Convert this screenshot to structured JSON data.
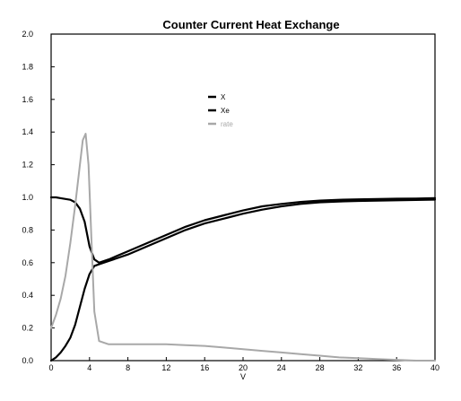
{
  "chart_data": {
    "type": "line",
    "title": "Counter Current Heat Exchange",
    "xlabel": "V",
    "ylabel": "",
    "xlim": [
      0,
      40
    ],
    "ylim": [
      0,
      2.0
    ],
    "xticks": [
      0,
      4,
      8,
      12,
      16,
      20,
      24,
      28,
      32,
      36,
      40
    ],
    "yticks": [
      0.0,
      0.2,
      0.4,
      0.6,
      0.8,
      1.0,
      1.2,
      1.4,
      1.6,
      1.8,
      2.0
    ],
    "ytick_labels": [
      "0.0",
      "0.2",
      "0.4",
      "0.6",
      "0.8",
      "1.0",
      "1.2",
      "1.4",
      "1.6",
      "1.8",
      "2.0"
    ],
    "grid": false,
    "legend_position": "upper-center",
    "series": [
      {
        "name": "X",
        "color": "#000000",
        "x": [
          0,
          0.5,
          1,
          1.5,
          2,
          2.5,
          3,
          3.5,
          4,
          4.5,
          5,
          6,
          8,
          10,
          12,
          14,
          16,
          18,
          20,
          22,
          24,
          26,
          28,
          30,
          32,
          34,
          36,
          38,
          40
        ],
        "y": [
          0.0,
          0.02,
          0.05,
          0.09,
          0.14,
          0.22,
          0.33,
          0.44,
          0.53,
          0.58,
          0.59,
          0.61,
          0.65,
          0.7,
          0.75,
          0.8,
          0.84,
          0.87,
          0.9,
          0.925,
          0.945,
          0.96,
          0.97,
          0.975,
          0.978,
          0.98,
          0.982,
          0.984,
          0.986
        ]
      },
      {
        "name": "Xe",
        "color": "#000000",
        "x": [
          0,
          0.5,
          1,
          1.5,
          2,
          2.5,
          3,
          3.5,
          4,
          4.5,
          5,
          6,
          8,
          10,
          12,
          14,
          16,
          18,
          20,
          22,
          24,
          26,
          28,
          30,
          32,
          34,
          36,
          38,
          40
        ],
        "y": [
          1.0,
          1.0,
          0.995,
          0.99,
          0.985,
          0.97,
          0.93,
          0.85,
          0.7,
          0.62,
          0.6,
          0.62,
          0.67,
          0.72,
          0.77,
          0.82,
          0.86,
          0.89,
          0.92,
          0.945,
          0.96,
          0.972,
          0.98,
          0.985,
          0.988,
          0.99,
          0.992,
          0.993,
          0.995
        ]
      },
      {
        "name": "rate",
        "color": "#a8a8a8",
        "x": [
          0,
          0.5,
          1,
          1.5,
          2,
          2.5,
          3,
          3.3,
          3.6,
          3.9,
          4.2,
          4.5,
          5,
          6,
          8,
          10,
          12,
          14,
          16,
          18,
          20,
          22,
          24,
          26,
          28,
          30,
          32,
          34,
          36,
          38,
          40
        ],
        "y": [
          0.2,
          0.28,
          0.38,
          0.52,
          0.72,
          0.95,
          1.2,
          1.35,
          1.39,
          1.2,
          0.75,
          0.3,
          0.12,
          0.1,
          0.1,
          0.1,
          0.1,
          0.095,
          0.09,
          0.08,
          0.07,
          0.06,
          0.05,
          0.04,
          0.03,
          0.02,
          0.015,
          0.01,
          0.005,
          0.0,
          0.0
        ]
      }
    ]
  }
}
